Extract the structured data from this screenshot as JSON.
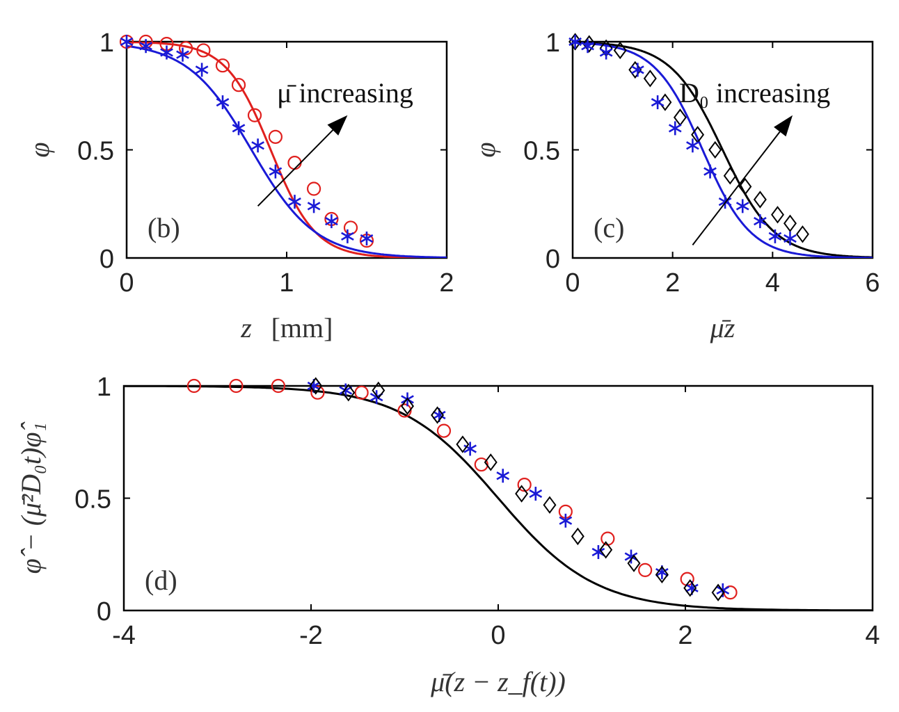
{
  "colors": {
    "red": "#e0201e",
    "blue": "#1a1ad6",
    "black": "#000000"
  },
  "panels": [
    {
      "id": "b",
      "label": "(b)",
      "xlabel_var": "z",
      "xlabel_unit": "[mm]",
      "ylabel": "φ",
      "xlim": [
        0,
        2
      ],
      "ylim": [
        0,
        1
      ],
      "xticks": [
        "0",
        "1",
        "2"
      ],
      "xtick_values": [
        0,
        1,
        2
      ],
      "yticks": [
        "0",
        "0.5",
        "1"
      ],
      "ytick_values": [
        0,
        0.5,
        1
      ],
      "annotation": "μ̄ increasing",
      "arrow": {
        "from": [
          0.82,
          0.24
        ],
        "to": [
          1.38,
          0.66
        ]
      },
      "series": [
        {
          "name": "red circles",
          "marker": "circle",
          "color": "red",
          "x": [
            0,
            0.12,
            0.25,
            0.37,
            0.48,
            0.6,
            0.7,
            0.8,
            0.93,
            1.05,
            1.17,
            1.28,
            1.4,
            1.5
          ],
          "y": [
            1.0,
            1.0,
            0.99,
            0.97,
            0.96,
            0.89,
            0.8,
            0.66,
            0.56,
            0.44,
            0.32,
            0.18,
            0.14,
            0.08
          ]
        },
        {
          "name": "blue stars",
          "marker": "star",
          "color": "blue",
          "x": [
            0,
            0.12,
            0.25,
            0.35,
            0.47,
            0.6,
            0.7,
            0.82,
            0.93,
            1.05,
            1.17,
            1.28,
            1.38,
            1.5
          ],
          "y": [
            1.0,
            0.98,
            0.95,
            0.94,
            0.87,
            0.72,
            0.6,
            0.52,
            0.4,
            0.26,
            0.24,
            0.17,
            0.1,
            0.09
          ]
        }
      ],
      "curves": [
        {
          "name": "red fit",
          "color": "red",
          "center": 0.9,
          "scale": 0.14
        },
        {
          "name": "blue fit",
          "color": "blue",
          "center": 0.78,
          "scale": 0.2
        }
      ]
    },
    {
      "id": "c",
      "label": "(c)",
      "xlabel_var": "μ̄z",
      "xlabel_unit": "",
      "ylabel": "φ",
      "xlim": [
        0,
        6
      ],
      "ylim": [
        0,
        1
      ],
      "xticks": [
        "0",
        "2",
        "4",
        "6"
      ],
      "xtick_values": [
        0,
        2,
        4,
        6
      ],
      "yticks": [
        "0",
        "0.5",
        "1"
      ],
      "ytick_values": [
        0,
        0.5,
        1
      ],
      "annotation": "D₀ increasing",
      "arrow": {
        "from": [
          2.4,
          0.06
        ],
        "to": [
          4.4,
          0.66
        ]
      },
      "series": [
        {
          "name": "black diamonds",
          "marker": "diamond",
          "color": "black",
          "x": [
            0.05,
            0.33,
            0.67,
            0.95,
            1.25,
            1.55,
            1.85,
            2.15,
            2.5,
            2.85,
            3.15,
            3.45,
            3.75,
            4.1,
            4.35,
            4.6
          ],
          "y": [
            1.0,
            0.99,
            0.97,
            0.96,
            0.87,
            0.83,
            0.72,
            0.65,
            0.57,
            0.5,
            0.38,
            0.33,
            0.27,
            0.2,
            0.16,
            0.11
          ]
        },
        {
          "name": "blue stars",
          "marker": "star",
          "color": "blue",
          "x": [
            0.05,
            0.3,
            0.67,
            1.3,
            1.7,
            2.05,
            2.4,
            2.75,
            3.05,
            3.4,
            3.75,
            4.05,
            4.35
          ],
          "y": [
            1.0,
            0.98,
            0.95,
            0.87,
            0.72,
            0.6,
            0.52,
            0.4,
            0.26,
            0.24,
            0.17,
            0.1,
            0.09
          ]
        }
      ],
      "curves": [
        {
          "name": "black fit",
          "color": "black",
          "center": 3.0,
          "scale": 0.52
        },
        {
          "name": "blue fit",
          "color": "blue",
          "center": 2.6,
          "scale": 0.48
        }
      ]
    },
    {
      "id": "d",
      "label": "(d)",
      "xlabel_var": "μ̄(z − z_f(t))",
      "xlabel_unit": "",
      "ylabel": "φ̂ − (μ̄²D₀t)φ̂₁",
      "xlim": [
        -4,
        4
      ],
      "ylim": [
        0,
        1
      ],
      "xticks": [
        "-4",
        "-2",
        "0",
        "2",
        "4"
      ],
      "xtick_values": [
        -4,
        -2,
        0,
        2,
        4
      ],
      "yticks": [
        "0",
        "0.5",
        "1"
      ],
      "ytick_values": [
        0,
        0.5,
        1
      ],
      "annotation": "",
      "series": [
        {
          "name": "red circles",
          "marker": "circle",
          "color": "red",
          "x": [
            -3.25,
            -2.8,
            -2.35,
            -1.93,
            -1.46,
            -1.0,
            -0.58,
            -0.18,
            0.28,
            0.72,
            1.17,
            1.57,
            2.02,
            2.48
          ],
          "y": [
            1.0,
            1.0,
            1.0,
            0.97,
            0.97,
            0.89,
            0.8,
            0.65,
            0.56,
            0.44,
            0.32,
            0.18,
            0.14,
            0.08
          ]
        },
        {
          "name": "blue stars",
          "marker": "star",
          "color": "blue",
          "x": [
            -1.97,
            -1.63,
            -1.3,
            -0.97,
            -0.63,
            -0.3,
            0.05,
            0.4,
            0.72,
            1.07,
            1.42,
            1.75,
            2.07,
            2.4
          ],
          "y": [
            1.0,
            0.98,
            0.95,
            0.94,
            0.87,
            0.72,
            0.6,
            0.52,
            0.4,
            0.26,
            0.24,
            0.17,
            0.1,
            0.09
          ]
        },
        {
          "name": "black diamonds",
          "marker": "diamond",
          "color": "black",
          "x": [
            -1.95,
            -1.6,
            -1.28,
            -0.97,
            -0.65,
            -0.38,
            -0.08,
            0.25,
            0.55,
            0.85,
            1.15,
            1.45,
            1.75,
            2.05,
            2.35
          ],
          "y": [
            1.0,
            0.97,
            0.98,
            0.91,
            0.87,
            0.74,
            0.66,
            0.52,
            0.47,
            0.33,
            0.27,
            0.21,
            0.16,
            0.1,
            0.08
          ]
        }
      ],
      "curves": [
        {
          "name": "black fit",
          "color": "black",
          "center": 0.0,
          "scale": 0.52
        }
      ]
    }
  ],
  "chart_data": [
    {
      "type": "scatter",
      "title": "(b)",
      "xlabel": "z [mm]",
      "ylabel": "φ",
      "xlim": [
        0,
        2
      ],
      "ylim": [
        0,
        1
      ],
      "series": [
        "red circles",
        "blue stars",
        "red fit",
        "blue fit"
      ]
    },
    {
      "type": "scatter",
      "title": "(c)",
      "xlabel": "μ̄z",
      "ylabel": "φ",
      "xlim": [
        0,
        6
      ],
      "ylim": [
        0,
        1
      ],
      "series": [
        "black diamonds",
        "blue stars",
        "black fit",
        "blue fit"
      ]
    },
    {
      "type": "scatter",
      "title": "(d)",
      "xlabel": "μ̄(z − z_f(t))",
      "ylabel": "φ̂ − (μ̄²D₀t)φ̂₁",
      "xlim": [
        -4,
        4
      ],
      "ylim": [
        0,
        1
      ],
      "series": [
        "red circles",
        "blue stars",
        "black diamonds",
        "black fit"
      ]
    }
  ]
}
